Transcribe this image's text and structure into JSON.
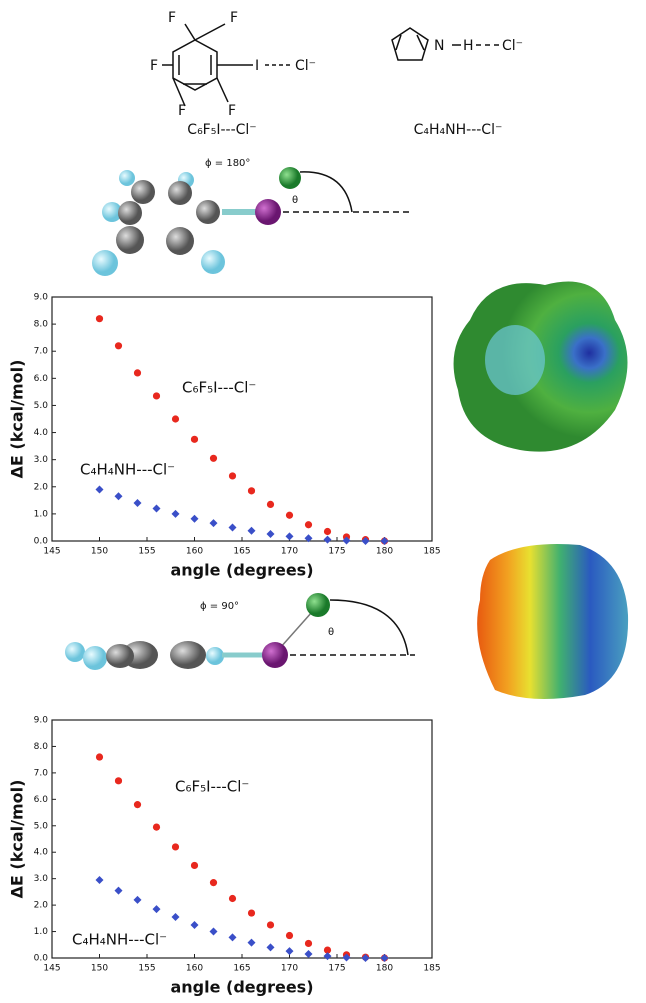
{
  "chart_data": [
    {
      "type": "scatter",
      "xlabel": "angle (degrees)",
      "ylabel": "ΔE (kcal/mol)",
      "x": [
        150,
        152,
        154,
        156,
        158,
        160,
        162,
        164,
        166,
        168,
        170,
        172,
        174,
        176,
        178,
        180
      ],
      "series": [
        {
          "name": "C₆F₅I---Cl⁻",
          "color": "#e8281e",
          "marker": "circle",
          "values": [
            8.2,
            7.2,
            6.2,
            5.35,
            4.5,
            3.75,
            3.05,
            2.4,
            1.85,
            1.35,
            0.95,
            0.6,
            0.35,
            0.15,
            0.05,
            0.0
          ]
        },
        {
          "name": "C₄H₄NH---Cl⁻",
          "color": "#3a4fc8",
          "marker": "diamond",
          "values": [
            1.9,
            1.65,
            1.4,
            1.2,
            1.0,
            0.82,
            0.66,
            0.5,
            0.38,
            0.26,
            0.17,
            0.1,
            0.05,
            0.02,
            0.0,
            0.0
          ]
        }
      ],
      "xlim": [
        145,
        185
      ],
      "xticks": [
        145,
        150,
        155,
        160,
        165,
        170,
        175,
        180,
        185
      ],
      "ylim": [
        0,
        9
      ],
      "yticks": [
        {
          "value": 0,
          "label": "0.0"
        },
        {
          "value": 1,
          "label": "1.0"
        },
        {
          "value": 2,
          "label": "2.0"
        },
        {
          "value": 3,
          "label": "3.0"
        },
        {
          "value": 4,
          "label": "4.0"
        },
        {
          "value": 5,
          "label": "5.0"
        },
        {
          "value": 6,
          "label": "6.0"
        },
        {
          "value": 7,
          "label": "7.0"
        },
        {
          "value": 8,
          "label": "8.0"
        },
        {
          "value": 9,
          "label": "9.0"
        }
      ],
      "grid": false
    },
    {
      "type": "scatter",
      "xlabel": "angle (degrees)",
      "ylabel": "ΔE (kcal/mol)",
      "x": [
        150,
        152,
        154,
        156,
        158,
        160,
        162,
        164,
        166,
        168,
        170,
        172,
        174,
        176,
        178,
        180
      ],
      "series": [
        {
          "name": "C₆F₅I---Cl⁻",
          "color": "#e8281e",
          "marker": "circle",
          "values": [
            7.6,
            6.7,
            5.8,
            4.95,
            4.2,
            3.5,
            2.85,
            2.25,
            1.7,
            1.25,
            0.85,
            0.55,
            0.3,
            0.12,
            0.03,
            0.0
          ]
        },
        {
          "name": "C₄H₄NH---Cl⁻",
          "color": "#3a4fc8",
          "marker": "diamond",
          "values": [
            2.95,
            2.55,
            2.2,
            1.85,
            1.55,
            1.25,
            1.0,
            0.78,
            0.58,
            0.4,
            0.26,
            0.15,
            0.07,
            0.02,
            0.0,
            0.0
          ]
        }
      ],
      "xlim": [
        145,
        185
      ],
      "xticks": [
        145,
        150,
        155,
        160,
        165,
        170,
        175,
        180,
        185
      ],
      "ylim": [
        0,
        9
      ],
      "yticks": [
        {
          "value": 0,
          "label": "0.0"
        },
        {
          "value": 1,
          "label": "1.0"
        },
        {
          "value": 2,
          "label": "2.0"
        },
        {
          "value": 3,
          "label": "3.0"
        },
        {
          "value": 4,
          "label": "4.0"
        },
        {
          "value": 5,
          "label": "5.0"
        },
        {
          "value": 6,
          "label": "6.0"
        },
        {
          "value": 7,
          "label": "7.0"
        },
        {
          "value": 8,
          "label": "8.0"
        },
        {
          "value": 9,
          "label": "9.0"
        }
      ],
      "grid": false
    }
  ],
  "figure_labels": {
    "structure1": {
      "atoms": [
        "F",
        "F",
        "F",
        "F",
        "F",
        "I",
        "Cl⁻"
      ],
      "name": "C₆F₅I---Cl⁻"
    },
    "structure2": {
      "atoms": [
        "N",
        "H",
        "Cl⁻"
      ],
      "name": "C₄H₄NH---Cl⁻"
    },
    "phi1": "ϕ = 180°",
    "theta1": "θ",
    "phi2": "ϕ = 90°",
    "theta2": "θ"
  }
}
